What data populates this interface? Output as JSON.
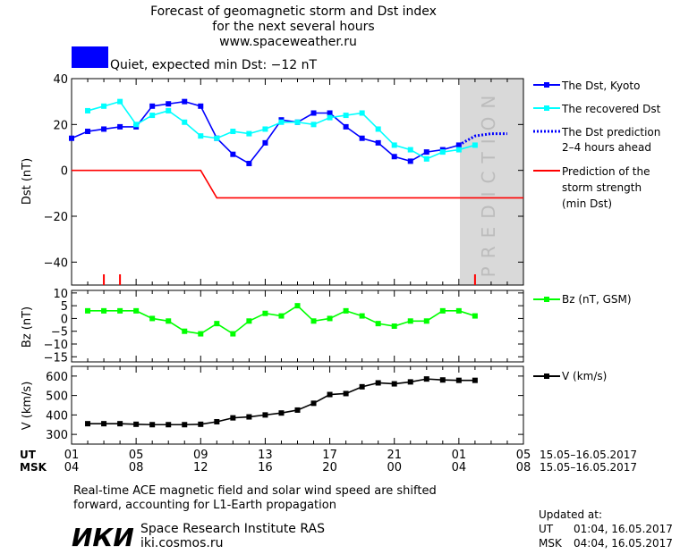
{
  "header": {
    "title_line1": "Forecast of geomagnetic storm and Dst index",
    "title_line2": "for the next several hours",
    "website": "www.spaceweather.ru"
  },
  "status": {
    "text": "Quiet, expected min Dst: −12 nT",
    "color": "#0000ff"
  },
  "prediction_label": "PREDICTION",
  "chart_data": [
    {
      "type": "line",
      "ylabel": "Dst (nT)",
      "ylim": [
        -50,
        40
      ],
      "yticks": [
        40,
        20,
        0,
        -20,
        -40
      ],
      "xlim": [
        0,
        28
      ],
      "prediction_region": [
        24,
        28
      ],
      "series": [
        {
          "name": "The Dst, Kyoto",
          "color": "#0000ff",
          "marker": "square",
          "x": [
            0,
            1,
            2,
            3,
            4,
            5,
            6,
            7,
            8,
            9,
            10,
            11,
            12,
            13,
            14,
            15,
            16,
            17,
            18,
            19,
            20,
            21,
            22,
            23,
            24
          ],
          "y": [
            14,
            17,
            18,
            19,
            19,
            28,
            29,
            30,
            28,
            14,
            7,
            3,
            12,
            22,
            21,
            25,
            25,
            19,
            14,
            12,
            6,
            4,
            8,
            9,
            11
          ]
        },
        {
          "name": "The recovered Dst",
          "color": "#00ffff",
          "marker": "square",
          "x": [
            1,
            2,
            3,
            4,
            5,
            6,
            7,
            8,
            9,
            10,
            11,
            12,
            13,
            14,
            15,
            16,
            17,
            18,
            19,
            20,
            21,
            22,
            23,
            24,
            25
          ],
          "y": [
            26,
            28,
            30,
            20,
            24,
            26,
            21,
            15,
            14,
            17,
            16,
            18,
            21,
            21,
            20,
            23,
            24,
            25,
            18,
            11,
            9,
            5,
            8,
            9,
            11
          ]
        },
        {
          "name": "The Dst prediction",
          "name_line2": "2–4 hours ahead",
          "color": "#0000ff",
          "style": "dotted",
          "x": [
            24,
            24.5,
            25,
            26,
            27
          ],
          "y": [
            11,
            13,
            15,
            16,
            16
          ]
        },
        {
          "name": "Prediction of the",
          "name_line2": "storm strength",
          "name_line3": "(min Dst)",
          "color": "#ff0000",
          "x": [
            0,
            8,
            9,
            28
          ],
          "y": [
            0,
            0,
            -12,
            -12
          ]
        }
      ],
      "tick_markers_x": [
        2,
        3,
        25
      ],
      "tick_markers_color": "#ff0000"
    },
    {
      "type": "line",
      "ylabel": "Bz (nT)",
      "ylim": [
        -17,
        11
      ],
      "yticks": [
        10,
        5,
        0,
        -5,
        -10,
        -15
      ],
      "series": [
        {
          "name": "Bz (nT, GSM)",
          "color": "#00ff00",
          "marker": "square",
          "x": [
            1,
            2,
            3,
            4,
            5,
            6,
            7,
            8,
            9,
            10,
            11,
            12,
            13,
            14,
            15,
            16,
            17,
            18,
            19,
            20,
            21,
            22,
            23,
            24,
            25
          ],
          "y": [
            3,
            3,
            3,
            3,
            0,
            -1,
            -5,
            -6,
            -2,
            -6,
            -1,
            2,
            1,
            5,
            -1,
            0,
            3,
            1,
            -2,
            -3,
            -1,
            -1,
            3,
            3,
            1
          ]
        }
      ]
    },
    {
      "type": "line",
      "ylabel": "V (km/s)",
      "ylim": [
        250,
        650
      ],
      "yticks": [
        600,
        500,
        400,
        300
      ],
      "series": [
        {
          "name": "V (km/s)",
          "color": "#000000",
          "marker": "square",
          "x": [
            1,
            2,
            3,
            4,
            5,
            6,
            7,
            8,
            9,
            10,
            11,
            12,
            13,
            14,
            15,
            16,
            17,
            18,
            19,
            20,
            21,
            22,
            23,
            24,
            25
          ],
          "y": [
            355,
            355,
            355,
            352,
            350,
            350,
            350,
            352,
            365,
            385,
            390,
            400,
            410,
            425,
            460,
            505,
            510,
            545,
            565,
            560,
            570,
            585,
            580,
            578,
            578
          ]
        }
      ]
    }
  ],
  "time_axis": {
    "ut_label": "UT",
    "msk_label": "MSK",
    "ut_ticks": [
      "01",
      "05",
      "09",
      "13",
      "17",
      "21",
      "01",
      "05"
    ],
    "msk_ticks": [
      "04",
      "08",
      "12",
      "16",
      "20",
      "00",
      "04",
      "08"
    ],
    "date_range": "15.05–16.05.2017"
  },
  "footer": {
    "note_line1": "Real-time ACE magnetic field and solar wind speed are shifted",
    "note_line2": "forward, accounting for L1-Earth propagation",
    "logo_text": "ИКИ",
    "institute": "Space Research Institute RAS",
    "site": "iki.cosmos.ru",
    "updated_label": "Updated at:",
    "updated_ut_label": "UT",
    "updated_ut": "01:04, 16.05.2017",
    "updated_msk_label": "MSK",
    "updated_msk": "04:04, 16.05.2017"
  }
}
